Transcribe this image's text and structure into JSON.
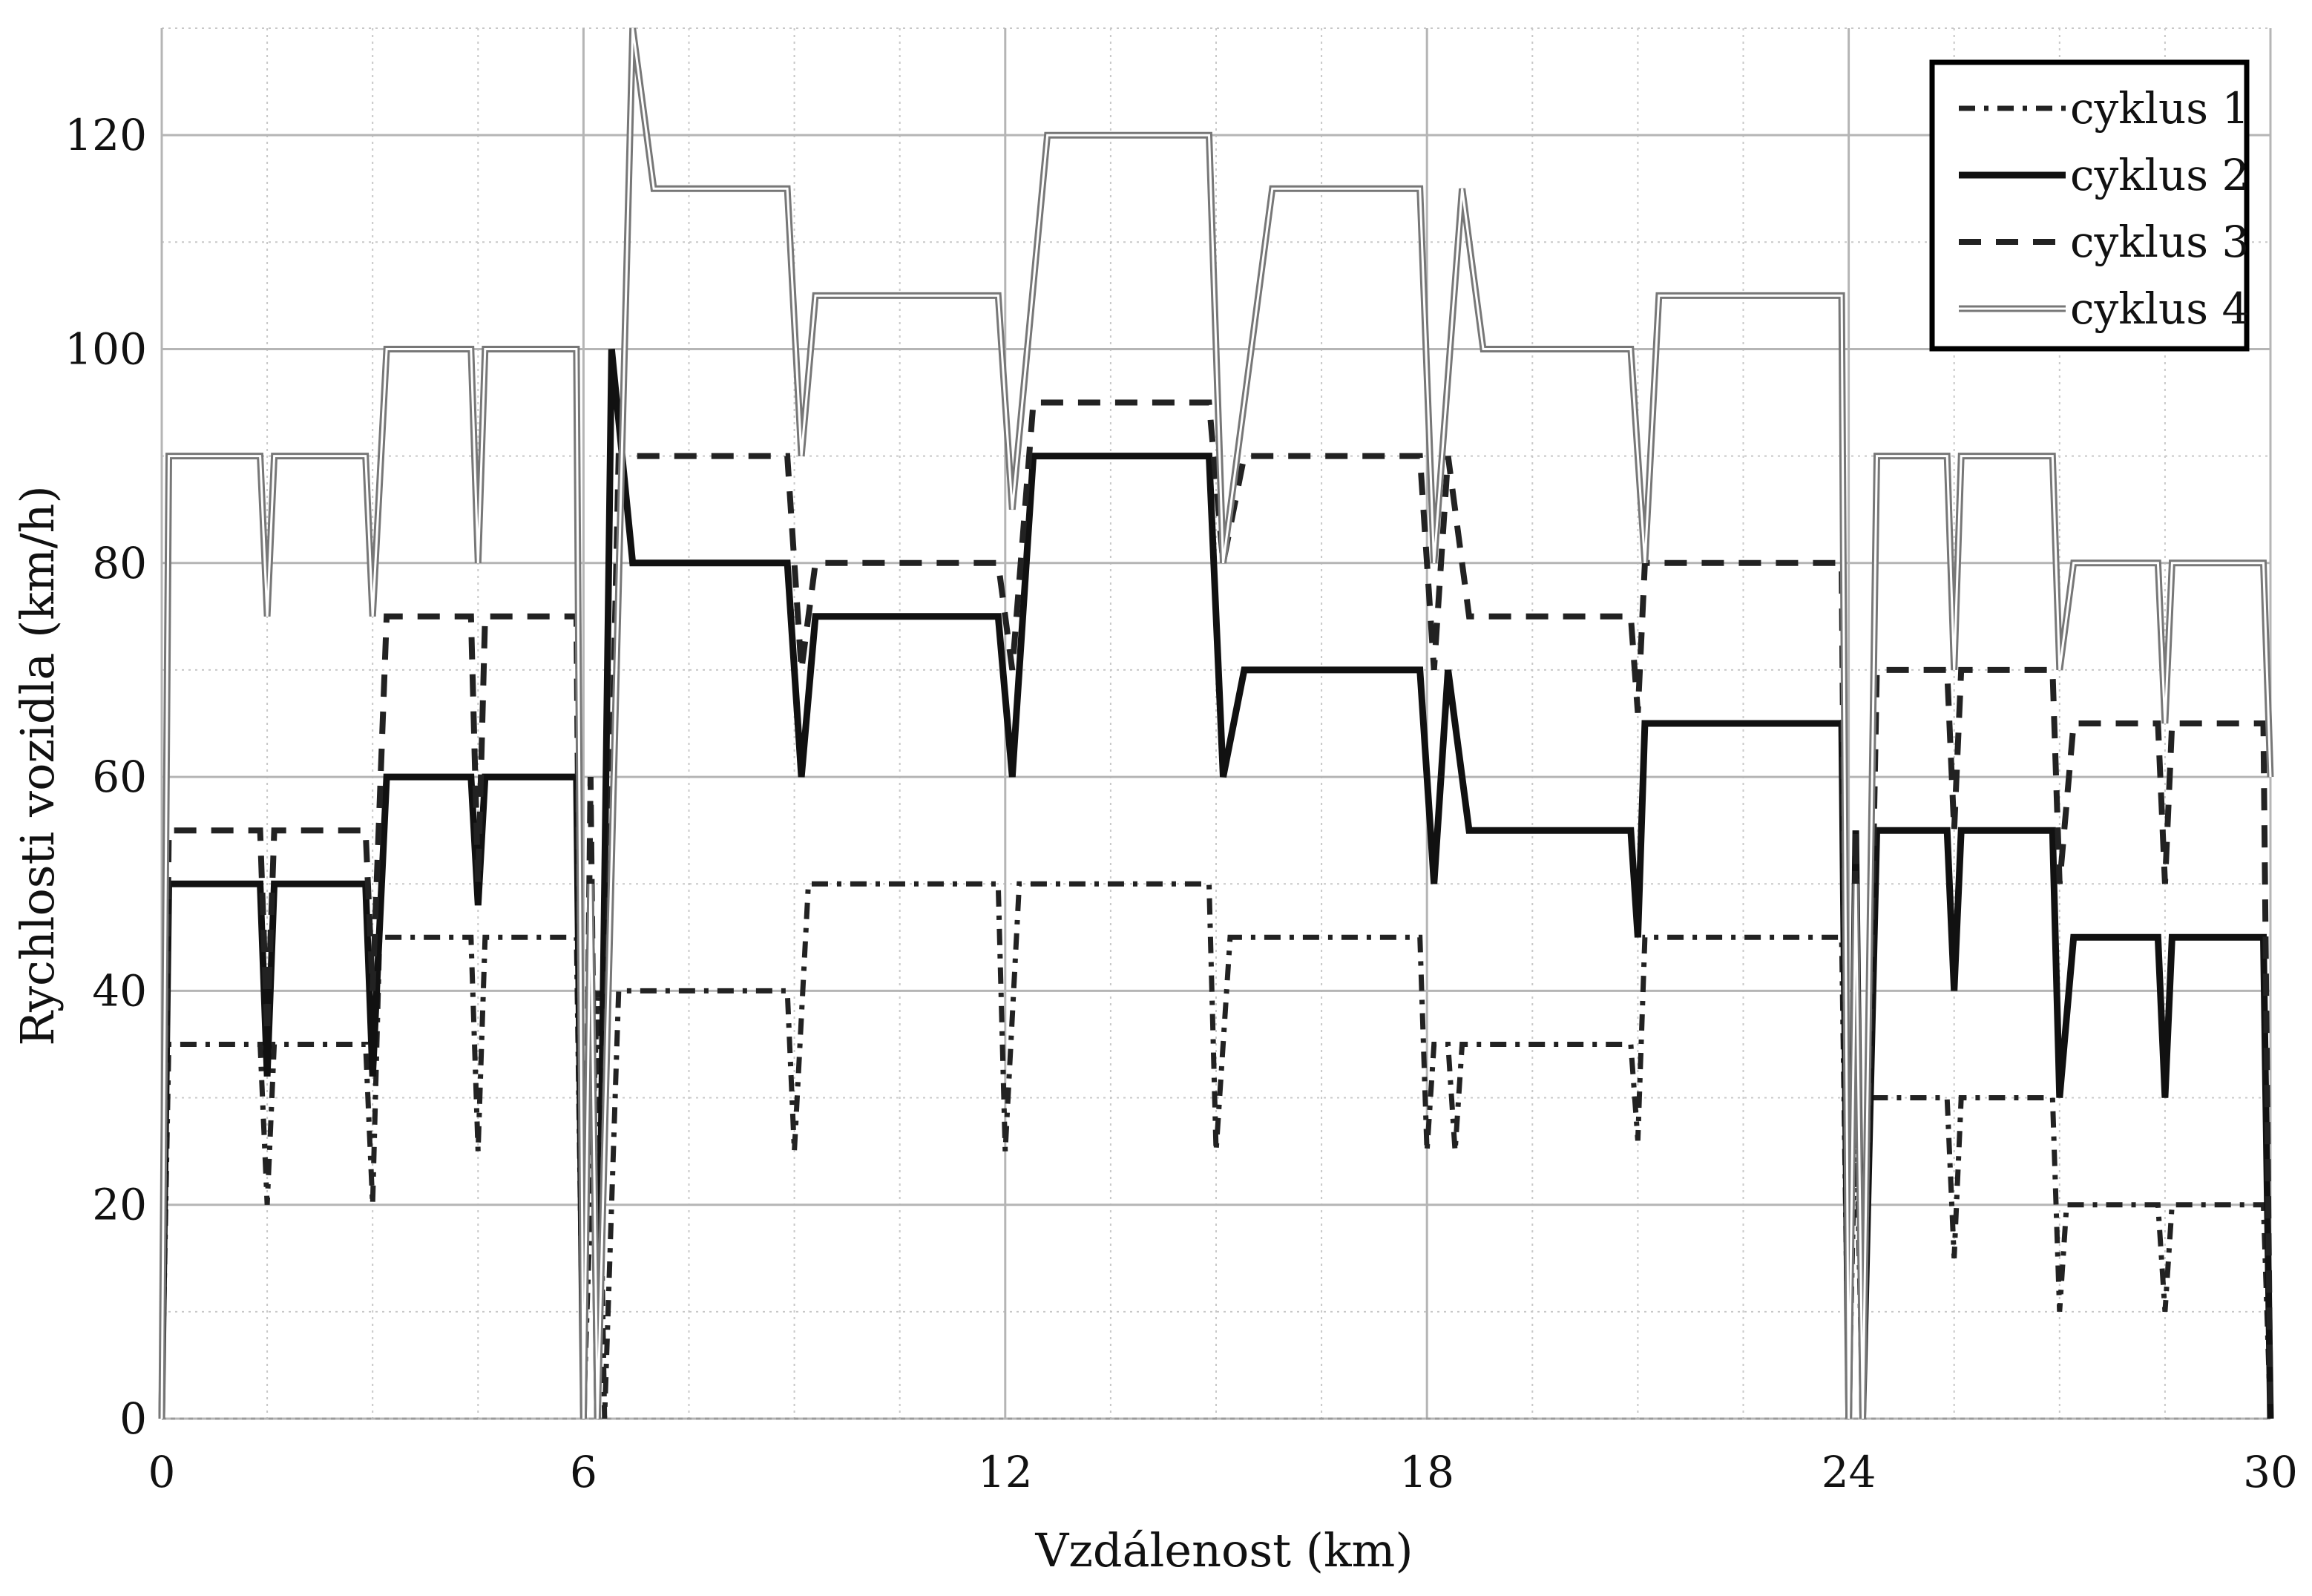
{
  "chart_data": {
    "type": "line",
    "title": "",
    "xlabel": "Vzdálenost (km)",
    "ylabel": "Rychlosti vozidla (km/h)",
    "xlim": [
      0,
      30
    ],
    "ylim": [
      0,
      130
    ],
    "xticks": [
      0,
      6,
      12,
      18,
      24,
      30
    ],
    "xtick_labels": [
      "0",
      "6",
      "12",
      "18",
      "24",
      "30"
    ],
    "yticks": [
      0,
      20,
      40,
      60,
      80,
      100,
      120
    ],
    "ytick_labels": [
      "0",
      "20",
      "40",
      "60",
      "80",
      "100",
      "120"
    ],
    "grid": true,
    "legend_position": "top-right",
    "series": [
      {
        "name": "cyklus 1",
        "style": "dashdot",
        "color": "#222222",
        "points": [
          [
            0,
            0
          ],
          [
            0.1,
            35
          ],
          [
            1.4,
            35
          ],
          [
            1.5,
            20
          ],
          [
            1.6,
            35
          ],
          [
            2.9,
            35
          ],
          [
            3.0,
            20
          ],
          [
            3.1,
            45
          ],
          [
            4.4,
            45
          ],
          [
            4.5,
            25
          ],
          [
            4.6,
            45
          ],
          [
            5.9,
            45
          ],
          [
            6.0,
            0
          ],
          [
            6.2,
            40
          ],
          [
            6.3,
            0
          ],
          [
            6.5,
            40
          ],
          [
            8.9,
            40
          ],
          [
            9.0,
            25
          ],
          [
            9.2,
            50
          ],
          [
            11.9,
            50
          ],
          [
            12.0,
            25
          ],
          [
            12.2,
            50
          ],
          [
            14.9,
            50
          ],
          [
            15.0,
            25
          ],
          [
            15.2,
            45
          ],
          [
            17.9,
            45
          ],
          [
            18.0,
            25
          ],
          [
            18.1,
            35
          ],
          [
            18.3,
            35
          ],
          [
            18.4,
            25
          ],
          [
            18.5,
            35
          ],
          [
            20.9,
            35
          ],
          [
            21.0,
            26
          ],
          [
            21.1,
            45
          ],
          [
            23.9,
            45
          ],
          [
            24.0,
            0
          ],
          [
            24.1,
            30
          ],
          [
            24.2,
            0
          ],
          [
            24.3,
            30
          ],
          [
            25.4,
            30
          ],
          [
            25.5,
            15
          ],
          [
            25.6,
            30
          ],
          [
            26.9,
            30
          ],
          [
            27.0,
            10
          ],
          [
            27.1,
            20
          ],
          [
            28.4,
            20
          ],
          [
            28.5,
            10
          ],
          [
            28.6,
            20
          ],
          [
            29.9,
            20
          ],
          [
            30.0,
            0
          ]
        ]
      },
      {
        "name": "cyklus 2",
        "style": "solid",
        "color": "#111111",
        "points": [
          [
            0,
            0
          ],
          [
            0.1,
            50
          ],
          [
            1.4,
            50
          ],
          [
            1.5,
            32
          ],
          [
            1.6,
            50
          ],
          [
            2.9,
            50
          ],
          [
            3.0,
            32
          ],
          [
            3.2,
            60
          ],
          [
            4.4,
            60
          ],
          [
            4.5,
            48
          ],
          [
            4.6,
            60
          ],
          [
            5.9,
            60
          ],
          [
            6.0,
            0
          ],
          [
            6.1,
            50
          ],
          [
            6.2,
            0
          ],
          [
            6.4,
            100
          ],
          [
            6.7,
            80
          ],
          [
            8.9,
            80
          ],
          [
            9.1,
            60
          ],
          [
            9.3,
            75
          ],
          [
            11.9,
            75
          ],
          [
            12.1,
            60
          ],
          [
            12.4,
            90
          ],
          [
            14.9,
            90
          ],
          [
            15.1,
            60
          ],
          [
            15.4,
            70
          ],
          [
            17.9,
            70
          ],
          [
            18.1,
            50
          ],
          [
            18.3,
            70
          ],
          [
            18.6,
            55
          ],
          [
            20.9,
            55
          ],
          [
            21.0,
            45
          ],
          [
            21.1,
            65
          ],
          [
            23.9,
            65
          ],
          [
            24.0,
            0
          ],
          [
            24.1,
            55
          ],
          [
            24.2,
            0
          ],
          [
            24.4,
            55
          ],
          [
            25.4,
            55
          ],
          [
            25.5,
            40
          ],
          [
            25.6,
            55
          ],
          [
            26.9,
            55
          ],
          [
            27.0,
            30
          ],
          [
            27.2,
            45
          ],
          [
            28.4,
            45
          ],
          [
            28.5,
            30
          ],
          [
            28.6,
            45
          ],
          [
            29.9,
            45
          ],
          [
            30.0,
            0
          ]
        ]
      },
      {
        "name": "cyklus 3",
        "style": "dashed",
        "color": "#222222",
        "points": [
          [
            0,
            0
          ],
          [
            0.1,
            55
          ],
          [
            1.4,
            55
          ],
          [
            1.5,
            36
          ],
          [
            1.6,
            55
          ],
          [
            2.9,
            55
          ],
          [
            3.0,
            40
          ],
          [
            3.2,
            75
          ],
          [
            4.4,
            75
          ],
          [
            4.5,
            50
          ],
          [
            4.6,
            75
          ],
          [
            5.9,
            75
          ],
          [
            6.0,
            0
          ],
          [
            6.1,
            60
          ],
          [
            6.2,
            0
          ],
          [
            6.5,
            90
          ],
          [
            8.9,
            90
          ],
          [
            9.1,
            70
          ],
          [
            9.3,
            80
          ],
          [
            11.9,
            80
          ],
          [
            12.1,
            70
          ],
          [
            12.4,
            95
          ],
          [
            14.9,
            95
          ],
          [
            15.1,
            80
          ],
          [
            15.4,
            90
          ],
          [
            17.9,
            90
          ],
          [
            18.1,
            70
          ],
          [
            18.3,
            90
          ],
          [
            18.6,
            75
          ],
          [
            20.9,
            75
          ],
          [
            21.0,
            66
          ],
          [
            21.1,
            80
          ],
          [
            23.9,
            80
          ],
          [
            24.0,
            0
          ],
          [
            24.1,
            55
          ],
          [
            24.2,
            0
          ],
          [
            24.4,
            70
          ],
          [
            25.4,
            70
          ],
          [
            25.5,
            55
          ],
          [
            25.6,
            70
          ],
          [
            26.9,
            70
          ],
          [
            27.0,
            50
          ],
          [
            27.2,
            65
          ],
          [
            28.4,
            65
          ],
          [
            28.5,
            50
          ],
          [
            28.6,
            65
          ],
          [
            29.9,
            65
          ],
          [
            30.0,
            0
          ]
        ]
      },
      {
        "name": "cyklus 4",
        "style": "double",
        "color": "#777777",
        "points": [
          [
            0,
            0
          ],
          [
            0.1,
            90
          ],
          [
            1.4,
            90
          ],
          [
            1.5,
            75
          ],
          [
            1.6,
            90
          ],
          [
            2.9,
            90
          ],
          [
            3.0,
            75
          ],
          [
            3.2,
            100
          ],
          [
            4.4,
            100
          ],
          [
            4.5,
            80
          ],
          [
            4.6,
            100
          ],
          [
            5.9,
            100
          ],
          [
            6.0,
            0
          ],
          [
            6.1,
            50
          ],
          [
            6.2,
            0
          ],
          [
            6.7,
            130
          ],
          [
            7.0,
            115
          ],
          [
            8.9,
            115
          ],
          [
            9.1,
            90
          ],
          [
            9.3,
            105
          ],
          [
            11.9,
            105
          ],
          [
            12.1,
            85
          ],
          [
            12.6,
            120
          ],
          [
            14.9,
            120
          ],
          [
            15.1,
            80
          ],
          [
            15.8,
            115
          ],
          [
            17.9,
            115
          ],
          [
            18.1,
            80
          ],
          [
            18.5,
            115
          ],
          [
            18.8,
            100
          ],
          [
            20.9,
            100
          ],
          [
            21.1,
            80
          ],
          [
            21.3,
            105
          ],
          [
            23.9,
            105
          ],
          [
            24.0,
            0
          ],
          [
            24.1,
            50
          ],
          [
            24.2,
            0
          ],
          [
            24.4,
            90
          ],
          [
            25.4,
            90
          ],
          [
            25.5,
            70
          ],
          [
            25.6,
            90
          ],
          [
            26.9,
            90
          ],
          [
            27.0,
            70
          ],
          [
            27.2,
            80
          ],
          [
            28.4,
            80
          ],
          [
            28.5,
            65
          ],
          [
            28.6,
            80
          ],
          [
            29.9,
            80
          ],
          [
            30.0,
            60
          ]
        ]
      }
    ]
  }
}
